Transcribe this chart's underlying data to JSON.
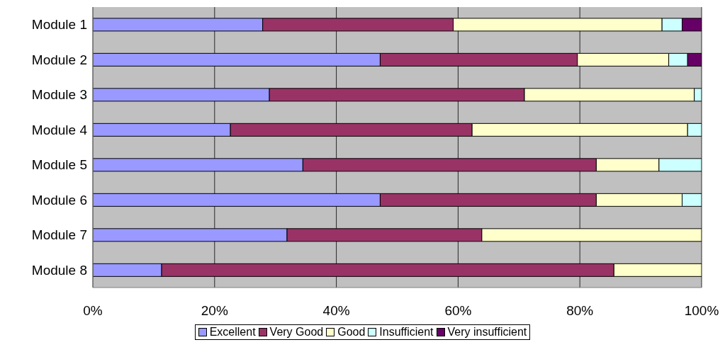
{
  "chart_data": {
    "type": "bar",
    "orientation": "horizontal",
    "stacked": true,
    "categories": [
      "Module 1",
      "Module 2",
      "Module 3",
      "Module 4",
      "Module 5",
      "Module 6",
      "Module 7",
      "Module 8"
    ],
    "series": [
      {
        "name": "Excellent",
        "color": "#9999ff",
        "values": [
          27.9,
          47.2,
          29.0,
          22.6,
          34.5,
          47.2,
          31.9,
          11.3
        ]
      },
      {
        "name": "Very Good",
        "color": "#993366",
        "values": [
          31.3,
          32.4,
          41.9,
          39.7,
          48.2,
          35.5,
          32.0,
          74.3
        ]
      },
      {
        "name": "Good",
        "color": "#ffffcc",
        "values": [
          34.3,
          15.0,
          27.9,
          35.4,
          10.3,
          14.1,
          36.1,
          14.4
        ]
      },
      {
        "name": "Insufficient",
        "color": "#ccffff",
        "values": [
          3.3,
          3.1,
          1.2,
          2.3,
          7.0,
          3.2,
          0,
          0
        ]
      },
      {
        "name": "Very insufficient",
        "color": "#660066",
        "values": [
          3.2,
          2.3,
          0,
          0,
          0,
          0,
          0,
          0
        ]
      }
    ],
    "xlim": [
      0,
      100
    ],
    "xticks": [
      {
        "value": 0,
        "label": "0%"
      },
      {
        "value": 20,
        "label": "20%"
      },
      {
        "value": 40,
        "label": "40%"
      },
      {
        "value": 60,
        "label": "60%"
      },
      {
        "value": 80,
        "label": "80%"
      },
      {
        "value": 100,
        "label": "100%"
      }
    ],
    "grid": "x",
    "legend": "bottom"
  }
}
